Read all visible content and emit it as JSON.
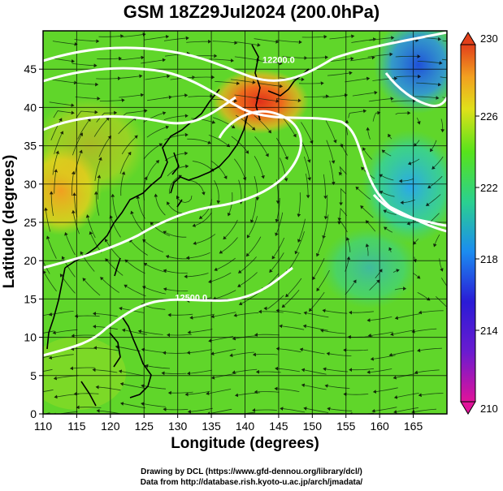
{
  "title": "GSM 18Z29Jul2024 (200.0hPa)",
  "x_axis": {
    "label": "Longitude (degrees)",
    "range": [
      110,
      170
    ],
    "ticks": [
      "110",
      "115",
      "120",
      "125",
      "130",
      "135",
      "140",
      "145",
      "150",
      "155",
      "160",
      "165"
    ]
  },
  "y_axis": {
    "label": "Latitude  (degrees)",
    "range": [
      0,
      50
    ],
    "ticks": [
      "0",
      "5",
      "10",
      "15",
      "20",
      "25",
      "30",
      "35",
      "40",
      "45"
    ]
  },
  "colorbar": {
    "range": [
      210,
      230
    ],
    "tick_labels": [
      "210",
      "214",
      "218",
      "222",
      "226",
      "230"
    ],
    "colors": [
      "#e0139a",
      "#2a1bd6",
      "#1b8cf0",
      "#2bd08f",
      "#57e31b",
      "#e0e01a",
      "#f2a020",
      "#e2401b"
    ]
  },
  "contour_labels": [
    {
      "text": "12200.0",
      "lon": 145.0,
      "lat": 45.8
    },
    {
      "text": "12500.0",
      "lon": 132.0,
      "lat": 14.8
    }
  ],
  "credits": [
    "Drawing by DCL (https://www.gfd-dennou.org/library/dcl/)",
    "Data from http://database.rish.kyoto-u.ac.jp/arch/jmadata/"
  ]
}
